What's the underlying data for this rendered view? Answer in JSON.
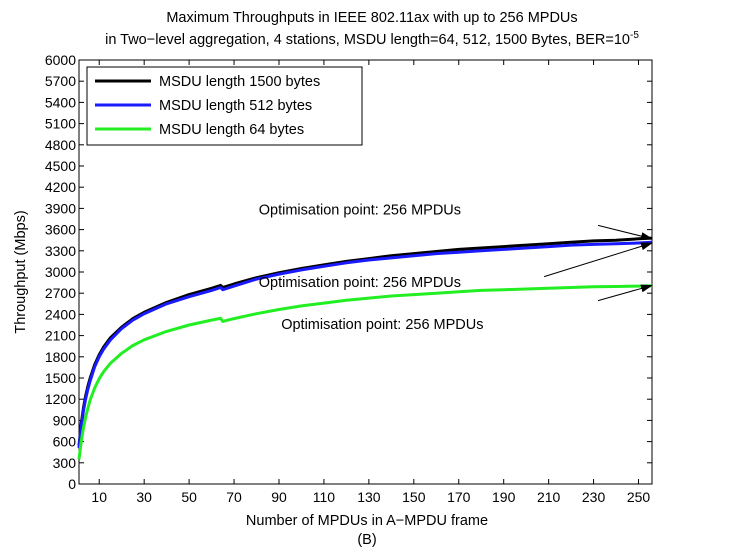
{
  "chart_data": {
    "type": "line",
    "title_line1": "Maximum Throughputs in IEEE 802.11ax with up to 256 MPDUs",
    "title_line2": "in Two−level aggregation, 4 stations, MSDU length=64, 512, 1500 Bytes, BER=10",
    "title_superscript": "-5",
    "xlabel": "Number of MPDUs in A−MPDU frame",
    "sublabel": "(B)",
    "ylabel": "Throughput (Mbps)",
    "xlim": [
      1,
      256
    ],
    "ylim": [
      0,
      6000
    ],
    "xticks": [
      10,
      30,
      50,
      70,
      90,
      110,
      130,
      150,
      170,
      190,
      210,
      230,
      250
    ],
    "yticks": [
      0,
      300,
      600,
      900,
      1200,
      1500,
      1800,
      2100,
      2400,
      2700,
      3000,
      3300,
      3600,
      3900,
      4200,
      4500,
      4800,
      5100,
      5400,
      5700,
      6000
    ],
    "grid": false,
    "legend_position": "top-left",
    "series": [
      {
        "name": "MSDU length 1500 bytes",
        "color": "#000000",
        "x": [
          1,
          2,
          3,
          4,
          5,
          6,
          8,
          10,
          12,
          15,
          20,
          25,
          30,
          40,
          50,
          60,
          64,
          65,
          66,
          70,
          80,
          90,
          100,
          110,
          120,
          130,
          140,
          150,
          160,
          170,
          180,
          190,
          200,
          210,
          220,
          230,
          240,
          250,
          256
        ],
        "y": [
          540,
          850,
          1080,
          1250,
          1390,
          1500,
          1690,
          1830,
          1940,
          2070,
          2220,
          2340,
          2430,
          2570,
          2680,
          2770,
          2810,
          2780,
          2790,
          2830,
          2920,
          2990,
          3050,
          3100,
          3150,
          3190,
          3230,
          3260,
          3290,
          3320,
          3340,
          3360,
          3380,
          3400,
          3420,
          3440,
          3450,
          3470,
          3480
        ]
      },
      {
        "name": "MSDU length 512 bytes",
        "color": "#1a1aff",
        "x": [
          1,
          2,
          3,
          4,
          5,
          6,
          8,
          10,
          12,
          15,
          20,
          25,
          30,
          40,
          50,
          60,
          64,
          65,
          66,
          70,
          80,
          90,
          100,
          110,
          120,
          130,
          140,
          150,
          160,
          170,
          180,
          190,
          200,
          210,
          220,
          230,
          240,
          250,
          256
        ],
        "y": [
          510,
          810,
          1040,
          1210,
          1350,
          1460,
          1660,
          1800,
          1910,
          2040,
          2200,
          2320,
          2410,
          2550,
          2650,
          2740,
          2780,
          2750,
          2760,
          2800,
          2900,
          2970,
          3030,
          3080,
          3130,
          3170,
          3200,
          3230,
          3260,
          3280,
          3300,
          3320,
          3340,
          3360,
          3380,
          3390,
          3400,
          3410,
          3420
        ]
      },
      {
        "name": "MSDU length 64 bytes",
        "color": "#22ee22",
        "x": [
          1,
          2,
          3,
          4,
          5,
          6,
          8,
          10,
          12,
          15,
          20,
          25,
          30,
          40,
          50,
          60,
          64,
          65,
          66,
          70,
          80,
          90,
          100,
          110,
          120,
          130,
          140,
          150,
          160,
          170,
          180,
          190,
          200,
          210,
          220,
          230,
          240,
          250,
          256
        ],
        "y": [
          350,
          600,
          800,
          950,
          1080,
          1190,
          1360,
          1490,
          1590,
          1710,
          1850,
          1960,
          2040,
          2160,
          2250,
          2320,
          2345,
          2300,
          2310,
          2340,
          2410,
          2470,
          2520,
          2560,
          2600,
          2630,
          2660,
          2680,
          2700,
          2720,
          2740,
          2750,
          2760,
          2770,
          2780,
          2790,
          2795,
          2800,
          2805
        ]
      }
    ],
    "annotations": [
      {
        "text": "Optimisation point: 256 MPDUs",
        "text_at": [
          126,
          3815
        ],
        "arrow_from": [
          232,
          3660
        ],
        "arrow_to": [
          256,
          3470
        ]
      },
      {
        "text": "Optimisation point: 256 MPDUs",
        "text_at": [
          126,
          2790
        ],
        "arrow_from": [
          208,
          2935
        ],
        "arrow_to": [
          256,
          3410
        ]
      },
      {
        "text": "Optimisation point: 256 MPDUs",
        "text_at": [
          136,
          2190
        ],
        "arrow_from": [
          232,
          2595
        ],
        "arrow_to": [
          256,
          2810
        ]
      }
    ]
  }
}
